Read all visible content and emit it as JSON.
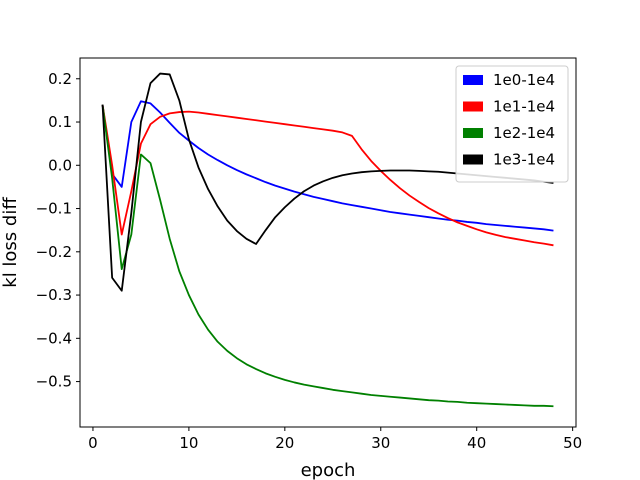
{
  "chart_data": {
    "type": "line",
    "xlabel": "epoch",
    "ylabel": "kl loss diff",
    "xlim": [
      -1.35,
      50.35
    ],
    "ylim": [
      -0.605,
      0.248
    ],
    "xticks": [
      0,
      10,
      20,
      30,
      40,
      50
    ],
    "xtick_labels": [
      "0",
      "10",
      "20",
      "30",
      "40",
      "50"
    ],
    "yticks": [
      -0.5,
      -0.4,
      -0.3,
      -0.2,
      -0.1,
      0.0,
      0.1,
      0.2
    ],
    "ytick_labels": [
      "−0.5",
      "−0.4",
      "−0.3",
      "−0.2",
      "−0.1",
      "0.0",
      "0.1",
      "0.2"
    ],
    "grid": false,
    "legend_position": "top-right",
    "series": [
      {
        "name": "1e0-1e4",
        "color": "#0000ff",
        "x": [
          1,
          2,
          3,
          4,
          5,
          6,
          7,
          8,
          9,
          10,
          11,
          12,
          13,
          14,
          15,
          16,
          17,
          18,
          19,
          20,
          21,
          22,
          23,
          24,
          25,
          26,
          27,
          28,
          29,
          30,
          31,
          32,
          33,
          34,
          35,
          36,
          37,
          38,
          39,
          40,
          41,
          42,
          43,
          44,
          45,
          46,
          47,
          48
        ],
        "y": [
          0.14,
          -0.02,
          -0.05,
          0.1,
          0.148,
          0.143,
          0.122,
          0.098,
          0.075,
          0.057,
          0.04,
          0.025,
          0.012,
          0.0,
          -0.011,
          -0.021,
          -0.03,
          -0.039,
          -0.047,
          -0.054,
          -0.061,
          -0.067,
          -0.073,
          -0.078,
          -0.083,
          -0.088,
          -0.092,
          -0.096,
          -0.1,
          -0.104,
          -0.108,
          -0.111,
          -0.114,
          -0.117,
          -0.12,
          -0.123,
          -0.126,
          -0.128,
          -0.131,
          -0.133,
          -0.136,
          -0.138,
          -0.14,
          -0.142,
          -0.144,
          -0.146,
          -0.148,
          -0.151
        ]
      },
      {
        "name": "1e1-1e4",
        "color": "#ff0000",
        "x": [
          1,
          2,
          3,
          4,
          5,
          6,
          7,
          8,
          9,
          10,
          11,
          12,
          13,
          14,
          15,
          16,
          17,
          18,
          19,
          20,
          21,
          22,
          23,
          24,
          25,
          26,
          27,
          28,
          29,
          30,
          31,
          32,
          33,
          34,
          35,
          36,
          37,
          38,
          39,
          40,
          41,
          42,
          43,
          44,
          45,
          46,
          47,
          48
        ],
        "y": [
          0.14,
          0.0,
          -0.16,
          -0.06,
          0.05,
          0.095,
          0.112,
          0.12,
          0.123,
          0.124,
          0.122,
          0.119,
          0.116,
          0.113,
          0.11,
          0.107,
          0.104,
          0.101,
          0.098,
          0.095,
          0.092,
          0.089,
          0.086,
          0.083,
          0.08,
          0.076,
          0.068,
          0.037,
          0.01,
          -0.013,
          -0.034,
          -0.053,
          -0.07,
          -0.085,
          -0.099,
          -0.111,
          -0.122,
          -0.132,
          -0.14,
          -0.148,
          -0.155,
          -0.161,
          -0.166,
          -0.17,
          -0.174,
          -0.178,
          -0.181,
          -0.185
        ]
      },
      {
        "name": "1e2-1e4",
        "color": "#008000",
        "x": [
          1,
          2,
          3,
          4,
          5,
          6,
          7,
          8,
          9,
          10,
          11,
          12,
          13,
          14,
          15,
          16,
          17,
          18,
          19,
          20,
          21,
          22,
          23,
          24,
          25,
          26,
          27,
          28,
          29,
          30,
          31,
          32,
          33,
          34,
          35,
          36,
          37,
          38,
          39,
          40,
          41,
          42,
          43,
          44,
          45,
          46,
          47,
          48
        ],
        "y": [
          0.14,
          -0.03,
          -0.24,
          -0.16,
          0.025,
          0.005,
          -0.08,
          -0.17,
          -0.245,
          -0.3,
          -0.345,
          -0.38,
          -0.408,
          -0.429,
          -0.446,
          -0.46,
          -0.471,
          -0.481,
          -0.489,
          -0.496,
          -0.502,
          -0.507,
          -0.511,
          -0.515,
          -0.519,
          -0.522,
          -0.525,
          -0.528,
          -0.531,
          -0.533,
          -0.535,
          -0.537,
          -0.539,
          -0.541,
          -0.543,
          -0.544,
          -0.546,
          -0.547,
          -0.549,
          -0.55,
          -0.551,
          -0.552,
          -0.553,
          -0.554,
          -0.555,
          -0.556,
          -0.556,
          -0.557
        ]
      },
      {
        "name": "1e3-1e4",
        "color": "#000000",
        "x": [
          1,
          2,
          3,
          4,
          5,
          6,
          7,
          8,
          9,
          10,
          11,
          12,
          13,
          14,
          15,
          16,
          17,
          18,
          19,
          20,
          21,
          22,
          23,
          24,
          25,
          26,
          27,
          28,
          29,
          30,
          31,
          32,
          33,
          34,
          35,
          36,
          37,
          38,
          39,
          40,
          41,
          42,
          43,
          44,
          45,
          46,
          47,
          48
        ],
        "y": [
          0.14,
          -0.26,
          -0.29,
          -0.11,
          0.1,
          0.19,
          0.212,
          0.21,
          0.15,
          0.06,
          -0.005,
          -0.055,
          -0.095,
          -0.128,
          -0.152,
          -0.17,
          -0.182,
          -0.15,
          -0.12,
          -0.097,
          -0.077,
          -0.06,
          -0.047,
          -0.037,
          -0.029,
          -0.023,
          -0.019,
          -0.016,
          -0.014,
          -0.013,
          -0.012,
          -0.012,
          -0.012,
          -0.013,
          -0.014,
          -0.015,
          -0.017,
          -0.019,
          -0.021,
          -0.023,
          -0.025,
          -0.027,
          -0.029,
          -0.031,
          -0.033,
          -0.035,
          -0.038,
          -0.041
        ]
      }
    ]
  }
}
